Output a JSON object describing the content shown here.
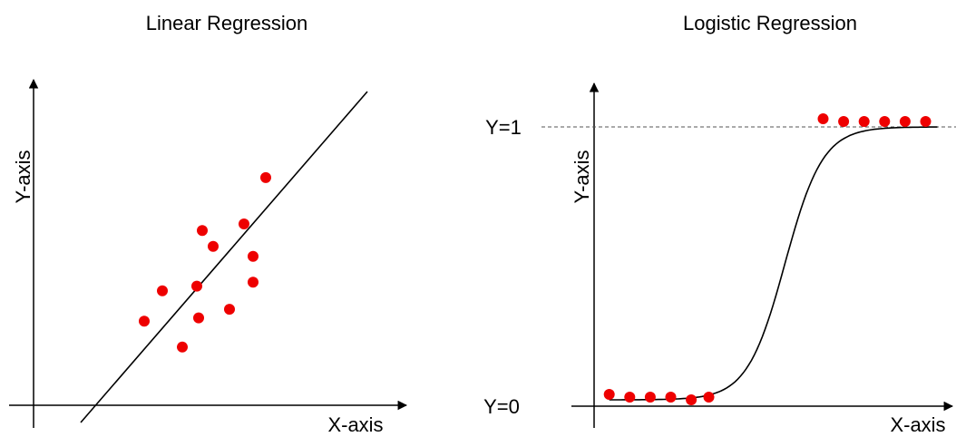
{
  "diagrams": [
    {
      "id": "linear",
      "title": "Linear Regression",
      "xlabel": "X-axis",
      "ylabel": "Y-axis",
      "curve": "line",
      "point_color": "#ee0000",
      "points": [
        [
          12.2,
          25.4
        ],
        [
          14.2,
          34.6
        ],
        [
          16.4,
          17.6
        ],
        [
          18.0,
          36.0
        ],
        [
          18.2,
          26.4
        ],
        [
          18.6,
          52.8
        ],
        [
          19.8,
          48.0
        ],
        [
          21.6,
          29.0
        ],
        [
          23.2,
          54.8
        ],
        [
          24.2,
          45.0
        ],
        [
          24.2,
          37.2
        ],
        [
          25.6,
          68.8
        ]
      ],
      "line_endpoints": [
        [
          5.2,
          -5.2
        ],
        [
          36.8,
          94.8
        ]
      ]
    },
    {
      "id": "logistic",
      "title": "Logistic Regression",
      "xlabel": "X-axis",
      "ylabel": "Y-axis",
      "curve": "sigmoid",
      "levels": [
        "Y=1",
        "Y=0"
      ],
      "point_color": "#ee0000",
      "points": [
        [
          0.3,
          0.02
        ],
        [
          1.0,
          0.01
        ],
        [
          1.7,
          0.01
        ],
        [
          2.4,
          0.01
        ],
        [
          3.1,
          0.0
        ],
        [
          3.7,
          0.01
        ],
        [
          7.6,
          1.03
        ],
        [
          8.3,
          1.02
        ],
        [
          9.0,
          1.02
        ],
        [
          9.7,
          1.02
        ],
        [
          10.4,
          1.02
        ],
        [
          11.1,
          1.02
        ]
      ]
    }
  ]
}
